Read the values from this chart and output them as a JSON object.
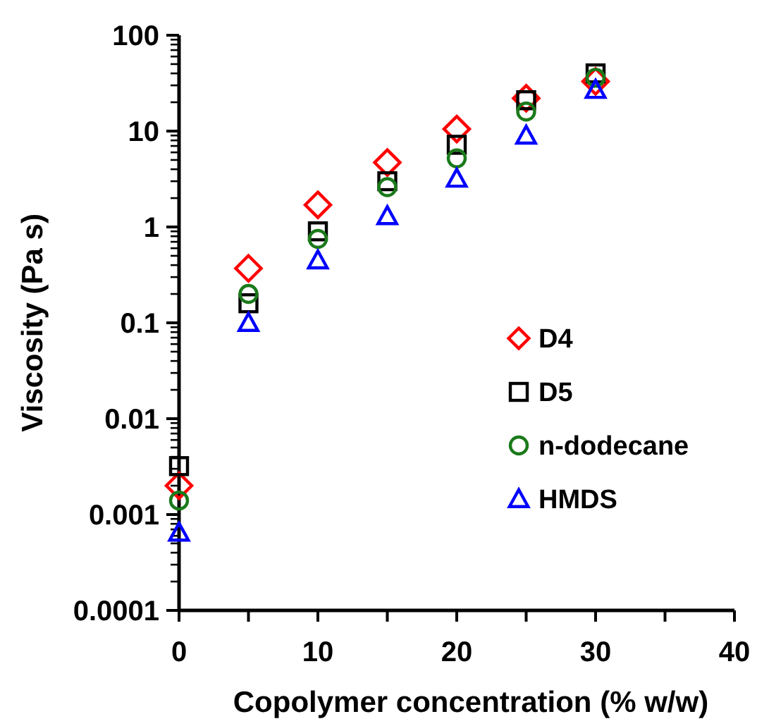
{
  "chart_data": {
    "type": "scatter",
    "xlabel": "Copolymer concentration (% w/w)",
    "ylabel": "Viscosity (Pa s)",
    "log": "y",
    "xlim": [
      0,
      40
    ],
    "ylim": [
      0.0001,
      100
    ],
    "xticks": [
      0,
      {
        "value": 5,
        "label": null
      },
      10,
      {
        "value": 15,
        "label": null
      },
      20,
      {
        "value": 25,
        "label": null
      },
      30,
      {
        "value": 35,
        "label": null
      },
      40
    ],
    "yticks": [
      0.0001,
      {
        "value": 0.0002,
        "label": null
      },
      {
        "value": 0.0003,
        "label": null
      },
      {
        "value": 0.0004,
        "label": null
      },
      {
        "value": 0.0005,
        "label": null
      },
      {
        "value": 0.0006,
        "label": null
      },
      {
        "value": 0.0007,
        "label": null
      },
      {
        "value": 0.0008,
        "label": null
      },
      {
        "value": 0.0009,
        "label": null
      },
      0.001,
      {
        "value": 0.002,
        "label": null
      },
      {
        "value": 0.003,
        "label": null
      },
      {
        "value": 0.004,
        "label": null
      },
      {
        "value": 0.005,
        "label": null
      },
      {
        "value": 0.006,
        "label": null
      },
      {
        "value": 0.007,
        "label": null
      },
      {
        "value": 0.008,
        "label": null
      },
      {
        "value": 0.009,
        "label": null
      },
      0.01,
      {
        "value": 0.02,
        "label": null
      },
      {
        "value": 0.03,
        "label": null
      },
      {
        "value": 0.04,
        "label": null
      },
      {
        "value": 0.05,
        "label": null
      },
      {
        "value": 0.06,
        "label": null
      },
      {
        "value": 0.07,
        "label": null
      },
      {
        "value": 0.08,
        "label": null
      },
      {
        "value": 0.09,
        "label": null
      },
      0.1,
      {
        "value": 0.2,
        "label": null
      },
      {
        "value": 0.3,
        "label": null
      },
      {
        "value": 0.4,
        "label": null
      },
      {
        "value": 0.5,
        "label": null
      },
      {
        "value": 0.6,
        "label": null
      },
      {
        "value": 0.7,
        "label": null
      },
      {
        "value": 0.8,
        "label": null
      },
      {
        "value": 0.9,
        "label": null
      },
      1,
      {
        "value": 2,
        "label": null
      },
      {
        "value": 3,
        "label": null
      },
      {
        "value": 4,
        "label": null
      },
      {
        "value": 5,
        "label": null
      },
      {
        "value": 6,
        "label": null
      },
      {
        "value": 7,
        "label": null
      },
      {
        "value": 8,
        "label": null
      },
      {
        "value": 9,
        "label": null
      },
      10,
      {
        "value": 20,
        "label": null
      },
      {
        "value": 30,
        "label": null
      },
      {
        "value": 40,
        "label": null
      },
      {
        "value": 50,
        "label": null
      },
      {
        "value": 60,
        "label": null
      },
      {
        "value": 70,
        "label": null
      },
      {
        "value": 80,
        "label": null
      },
      {
        "value": 90,
        "label": null
      },
      100
    ],
    "grid": false,
    "legend": "right",
    "x": [
      0,
      5,
      10,
      15,
      20,
      25,
      30
    ],
    "series": [
      {
        "name": "D4",
        "color": "#ff0000",
        "marker": "diamond",
        "values": [
          0.002,
          0.37,
          1.7,
          4.7,
          10.5,
          22,
          33
        ]
      },
      {
        "name": "D5",
        "color": "#000000",
        "marker": "square",
        "values": [
          0.0032,
          0.16,
          0.9,
          3.0,
          7.2,
          21,
          40
        ]
      },
      {
        "name": "n-dodecane",
        "color": "#1a7a1a",
        "marker": "circle",
        "values": [
          0.0014,
          0.2,
          0.75,
          2.6,
          5.2,
          16,
          36
        ]
      },
      {
        "name": "HMDS",
        "color": "#0000ff",
        "marker": "triangle",
        "values": [
          0.00065,
          0.1,
          0.45,
          1.3,
          3.2,
          9,
          27
        ]
      }
    ]
  }
}
